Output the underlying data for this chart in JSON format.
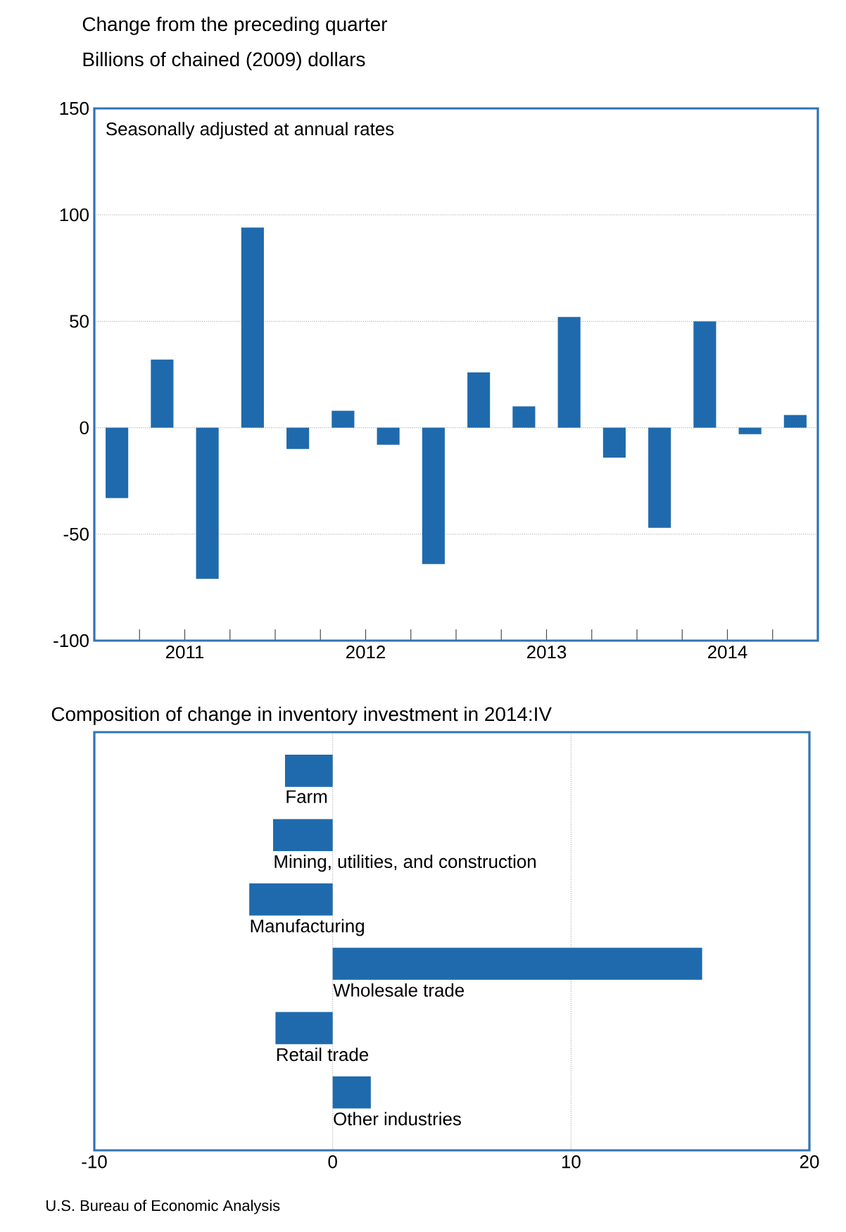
{
  "chart_data": [
    {
      "type": "bar",
      "title": "Change from the preceding quarter",
      "subtitle": "Billions of chained (2009) dollars",
      "annotations": [
        "Seasonally adjusted at annual rates"
      ],
      "x": [
        2011.125,
        2011.375,
        2011.625,
        2011.875,
        2012.125,
        2012.375,
        2012.625,
        2012.875,
        2013.125,
        2013.375,
        2013.625,
        2013.875,
        2014.125,
        2014.375,
        2014.625,
        2014.875
      ],
      "values": [
        -33,
        32,
        -71,
        94,
        -10,
        8,
        -8,
        -64,
        26,
        10,
        52,
        -14,
        -47,
        50,
        -3,
        6
      ],
      "color": "#1f6aad",
      "xlim": [
        2011,
        2015
      ],
      "xticks": [
        {
          "value": 2011.25,
          "label": null
        },
        {
          "value": 2011.5,
          "label": "2011"
        },
        {
          "value": 2011.75,
          "label": null
        },
        {
          "value": 2012,
          "label": null
        },
        {
          "value": 2012.25,
          "label": null
        },
        {
          "value": 2012.5,
          "label": "2012"
        },
        {
          "value": 2012.75,
          "label": null
        },
        {
          "value": 2013,
          "label": null
        },
        {
          "value": 2013.25,
          "label": null
        },
        {
          "value": 2013.5,
          "label": "2013"
        },
        {
          "value": 2013.75,
          "label": null
        },
        {
          "value": 2014,
          "label": null
        },
        {
          "value": 2014.25,
          "label": null
        },
        {
          "value": 2014.5,
          "label": "2014"
        },
        {
          "value": 2014.75,
          "label": null
        }
      ],
      "ylim": [
        -100,
        150
      ],
      "yticks": [
        -100,
        -50,
        0,
        50,
        100,
        150
      ],
      "grid": "y"
    },
    {
      "type": "bar",
      "orientation": "horizontal",
      "title": "Composition of change in inventory investment in 2014:IV",
      "annotations": [
        "U.S. Bureau of Economic Analysis"
      ],
      "categories": [
        "Farm",
        "Mining, utilities, and construction",
        "Manufacturing",
        "Wholesale trade",
        "Retail trade",
        "Other industries"
      ],
      "values": [
        -2.0,
        -2.5,
        -3.5,
        15.5,
        -2.4,
        1.6
      ],
      "color": "#1f6aad",
      "xlim": [
        -10,
        20
      ],
      "xticks": [
        -10,
        0,
        10,
        20
      ],
      "grid": "x"
    }
  ]
}
